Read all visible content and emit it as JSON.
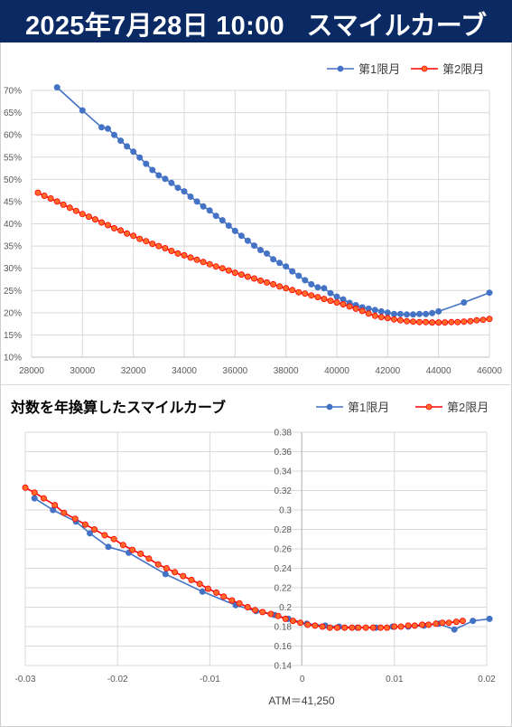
{
  "header": {
    "date": "2025年7月28日 10:00",
    "title": "スマイルカーブ"
  },
  "colors": {
    "header_bg": "#0b2a63",
    "series1": "#4472c4",
    "series2": "#ff0000",
    "series2_fill": "#ff6a2a"
  },
  "chart_data": [
    {
      "type": "line",
      "title": "",
      "xlabel": "",
      "ylabel": "",
      "xlim": [
        28000,
        46000
      ],
      "ylim": [
        0.1,
        0.7
      ],
      "x_ticks": [
        "28000",
        "30000",
        "32000",
        "34000",
        "36000",
        "38000",
        "40000",
        "42000",
        "44000",
        "46000"
      ],
      "y_ticks": [
        "10%",
        "15%",
        "20%",
        "25%",
        "30%",
        "35%",
        "40%",
        "45%",
        "50%",
        "55%",
        "60%",
        "65%",
        "70%"
      ],
      "legend_position": "top-right",
      "grid": true,
      "series": [
        {
          "name": "第1限月",
          "x": [
            29000,
            30000,
            30750,
            31000,
            31250,
            31500,
            31750,
            32000,
            32250,
            32500,
            32750,
            33000,
            33250,
            33500,
            33750,
            34000,
            34250,
            34500,
            34750,
            35000,
            35250,
            35500,
            35750,
            36000,
            36250,
            36500,
            36750,
            37000,
            37250,
            37500,
            37750,
            38000,
            38250,
            38500,
            38750,
            39000,
            39250,
            39500,
            39750,
            40000,
            40250,
            40500,
            40750,
            41000,
            41250,
            41500,
            41750,
            42000,
            42250,
            42500,
            42750,
            43000,
            43250,
            43500,
            43750,
            44000,
            45000,
            46000
          ],
          "values": [
            0.707,
            0.655,
            0.617,
            0.614,
            0.6,
            0.587,
            0.574,
            0.562,
            0.549,
            0.535,
            0.521,
            0.509,
            0.501,
            0.492,
            0.481,
            0.473,
            0.461,
            0.45,
            0.439,
            0.43,
            0.418,
            0.408,
            0.396,
            0.384,
            0.373,
            0.362,
            0.351,
            0.341,
            0.333,
            0.32,
            0.312,
            0.304,
            0.293,
            0.283,
            0.273,
            0.264,
            0.257,
            0.255,
            0.244,
            0.236,
            0.23,
            0.222,
            0.217,
            0.212,
            0.209,
            0.206,
            0.203,
            0.2,
            0.197,
            0.197,
            0.196,
            0.196,
            0.197,
            0.197,
            0.199,
            0.203,
            0.223,
            0.245
          ]
        },
        {
          "name": "第2限月",
          "x": [
            28250,
            28500,
            28750,
            29000,
            29250,
            29500,
            29750,
            30000,
            30250,
            30500,
            30750,
            31000,
            31250,
            31500,
            31750,
            32000,
            32250,
            32500,
            32750,
            33000,
            33250,
            33500,
            33750,
            34000,
            34250,
            34500,
            34750,
            35000,
            35250,
            35500,
            35750,
            36000,
            36250,
            36500,
            36750,
            37000,
            37250,
            37500,
            37750,
            38000,
            38250,
            38500,
            38750,
            39000,
            39250,
            39500,
            39750,
            40000,
            40250,
            40500,
            40750,
            41000,
            41250,
            41500,
            41750,
            42000,
            42250,
            42500,
            42750,
            43000,
            43250,
            43500,
            43750,
            44000,
            44250,
            44500,
            44750,
            45000,
            45250,
            45500,
            45750,
            46000
          ],
          "values": [
            0.47,
            0.463,
            0.457,
            0.45,
            0.443,
            0.436,
            0.429,
            0.422,
            0.416,
            0.41,
            0.403,
            0.397,
            0.39,
            0.385,
            0.378,
            0.373,
            0.366,
            0.361,
            0.355,
            0.35,
            0.345,
            0.339,
            0.333,
            0.329,
            0.324,
            0.319,
            0.314,
            0.309,
            0.304,
            0.3,
            0.295,
            0.29,
            0.286,
            0.281,
            0.277,
            0.272,
            0.268,
            0.264,
            0.259,
            0.255,
            0.251,
            0.246,
            0.243,
            0.239,
            0.235,
            0.231,
            0.227,
            0.223,
            0.219,
            0.214,
            0.209,
            0.204,
            0.198,
            0.193,
            0.19,
            0.188,
            0.185,
            0.183,
            0.181,
            0.18,
            0.179,
            0.179,
            0.178,
            0.178,
            0.178,
            0.179,
            0.179,
            0.18,
            0.181,
            0.183,
            0.184,
            0.186
          ]
        }
      ]
    },
    {
      "type": "line",
      "title": "対数を年換算したスマイルカーブ",
      "xlabel": "ATM＝41,250",
      "ylabel": "",
      "xlim": [
        -0.03,
        0.02
      ],
      "ylim": [
        0.14,
        0.38
      ],
      "x_ticks": [
        "-0.03",
        "-0.02",
        "-0.01",
        "0",
        "0.01",
        "0.02"
      ],
      "y_ticks": [
        "0.14",
        "0.16",
        "0.18",
        "0.2",
        "0.22",
        "0.24",
        "0.26",
        "0.28",
        "0.3",
        "0.32",
        "0.34",
        "0.36",
        "0.38"
      ],
      "legend_position": "top-right",
      "grid": true,
      "series": [
        {
          "name": "第1限月",
          "x": [
            -0.029,
            -0.027,
            -0.0245,
            -0.023,
            -0.021,
            -0.0188,
            -0.0148,
            -0.0108,
            -0.0072,
            -0.005,
            -0.003,
            -0.0015,
            0.0005,
            0.0025,
            0.004,
            0.006,
            0.008,
            0.0098,
            0.0115,
            0.0132,
            0.0148,
            0.0165,
            0.0185,
            0.0203
          ],
          "values": [
            0.312,
            0.3,
            0.288,
            0.276,
            0.262,
            0.256,
            0.234,
            0.216,
            0.202,
            0.196,
            0.192,
            0.188,
            0.183,
            0.181,
            0.18,
            0.179,
            0.179,
            0.18,
            0.18,
            0.181,
            0.183,
            0.177,
            0.186,
            0.188
          ]
        },
        {
          "name": "第2限月",
          "x": [
            -0.03,
            -0.029,
            -0.028,
            -0.0268,
            -0.0258,
            -0.0246,
            -0.0235,
            -0.0225,
            -0.0214,
            -0.0204,
            -0.0194,
            -0.0184,
            -0.0175,
            -0.0166,
            -0.0156,
            -0.0147,
            -0.0138,
            -0.0129,
            -0.012,
            -0.0111,
            -0.0102,
            -0.0093,
            -0.0085,
            -0.0076,
            -0.0068,
            -0.0059,
            -0.0051,
            -0.0043,
            -0.0034,
            -0.0026,
            -0.0018,
            -0.001,
            -0.0002,
            0.0006,
            0.0014,
            0.0022,
            0.003,
            0.0038,
            0.0046,
            0.0054,
            0.0061,
            0.0069,
            0.0077,
            0.0085,
            0.0092,
            0.01,
            0.0107,
            0.0115,
            0.0122,
            0.013,
            0.0137,
            0.0145,
            0.0152,
            0.0159,
            0.0167,
            0.0174
          ],
          "values": [
            0.323,
            0.318,
            0.312,
            0.305,
            0.297,
            0.291,
            0.285,
            0.28,
            0.274,
            0.27,
            0.264,
            0.259,
            0.255,
            0.25,
            0.244,
            0.24,
            0.236,
            0.232,
            0.228,
            0.224,
            0.219,
            0.215,
            0.211,
            0.207,
            0.204,
            0.2,
            0.197,
            0.195,
            0.193,
            0.191,
            0.188,
            0.186,
            0.184,
            0.182,
            0.181,
            0.18,
            0.179,
            0.179,
            0.179,
            0.179,
            0.179,
            0.179,
            0.179,
            0.179,
            0.179,
            0.18,
            0.18,
            0.181,
            0.181,
            0.182,
            0.182,
            0.183,
            0.184,
            0.184,
            0.185,
            0.186
          ]
        }
      ]
    }
  ]
}
